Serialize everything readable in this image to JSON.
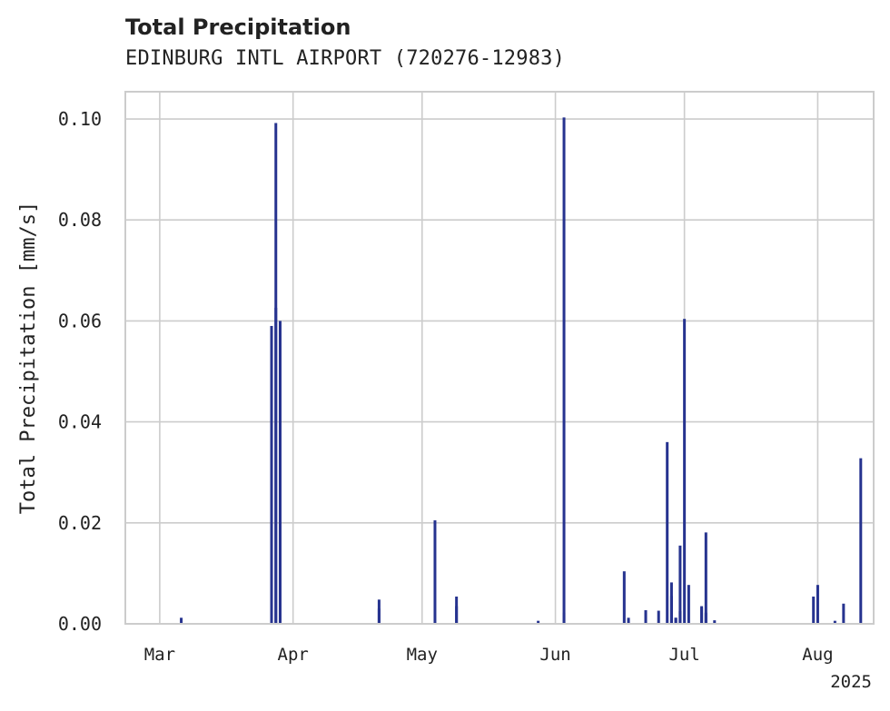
{
  "chart_data": {
    "type": "bar",
    "title": "Total Precipitation",
    "subtitle": "EDINBURG INTL AIRPORT (720276-12983)",
    "xlabel": "",
    "ylabel": "Total Precipitation [mm/s]",
    "year_label": "2025",
    "x_range": [
      "2025-02-21",
      "2025-08-14"
    ],
    "ylim": [
      0,
      0.1054
    ],
    "grid": true,
    "y_ticks": [
      {
        "value": 0.0,
        "label": "0.00"
      },
      {
        "value": 0.02,
        "label": "0.02"
      },
      {
        "value": 0.04,
        "label": "0.04"
      },
      {
        "value": 0.06,
        "label": "0.06"
      },
      {
        "value": 0.08,
        "label": "0.08"
      },
      {
        "value": 0.1,
        "label": "0.10"
      }
    ],
    "x_ticks": [
      {
        "date": "2025-03-01",
        "label": "Mar"
      },
      {
        "date": "2025-04-01",
        "label": "Apr"
      },
      {
        "date": "2025-05-01",
        "label": "May"
      },
      {
        "date": "2025-06-01",
        "label": "Jun"
      },
      {
        "date": "2025-07-01",
        "label": "Jul"
      },
      {
        "date": "2025-08-01",
        "label": "Aug"
      }
    ],
    "bar_color": "#26338f",
    "data": [
      {
        "x": "2025-03-06",
        "y": 0.0012
      },
      {
        "x": "2025-03-27",
        "y": 0.059
      },
      {
        "x": "2025-03-28",
        "y": 0.0626
      },
      {
        "x": "2025-03-28",
        "y": 0.0992
      },
      {
        "x": "2025-03-29",
        "y": 0.06
      },
      {
        "x": "2025-04-21",
        "y": 0.0048
      },
      {
        "x": "2025-04-21",
        "y": 0.003
      },
      {
        "x": "2025-05-04",
        "y": 0.0205
      },
      {
        "x": "2025-05-09",
        "y": 0.0054
      },
      {
        "x": "2025-05-09",
        "y": 0.0035
      },
      {
        "x": "2025-05-28",
        "y": 0.0006
      },
      {
        "x": "2025-06-03",
        "y": 0.1003
      },
      {
        "x": "2025-06-03",
        "y": 0.0022
      },
      {
        "x": "2025-06-17",
        "y": 0.0104
      },
      {
        "x": "2025-06-18",
        "y": 0.0012
      },
      {
        "x": "2025-06-22",
        "y": 0.0027
      },
      {
        "x": "2025-06-22",
        "y": 0.0022
      },
      {
        "x": "2025-06-25",
        "y": 0.0026
      },
      {
        "x": "2025-06-27",
        "y": 0.036
      },
      {
        "x": "2025-06-28",
        "y": 0.0082
      },
      {
        "x": "2025-06-28",
        "y": 0.0055
      },
      {
        "x": "2025-06-29",
        "y": 0.0012
      },
      {
        "x": "2025-06-29",
        "y": 0.0012
      },
      {
        "x": "2025-06-30",
        "y": 0.0155
      },
      {
        "x": "2025-06-30",
        "y": 0.0025
      },
      {
        "x": "2025-07-01",
        "y": 0.0604
      },
      {
        "x": "2025-07-02",
        "y": 0.0077
      },
      {
        "x": "2025-07-05",
        "y": 0.0032
      },
      {
        "x": "2025-07-05",
        "y": 0.0035
      },
      {
        "x": "2025-07-06",
        "y": 0.0181
      },
      {
        "x": "2025-07-06",
        "y": 0.0022
      },
      {
        "x": "2025-07-08",
        "y": 0.0007
      },
      {
        "x": "2025-07-31",
        "y": 0.0054
      },
      {
        "x": "2025-08-01",
        "y": 0.0077
      },
      {
        "x": "2025-08-05",
        "y": 0.0006
      },
      {
        "x": "2025-08-07",
        "y": 0.004
      },
      {
        "x": "2025-08-11",
        "y": 0.0328
      }
    ]
  }
}
